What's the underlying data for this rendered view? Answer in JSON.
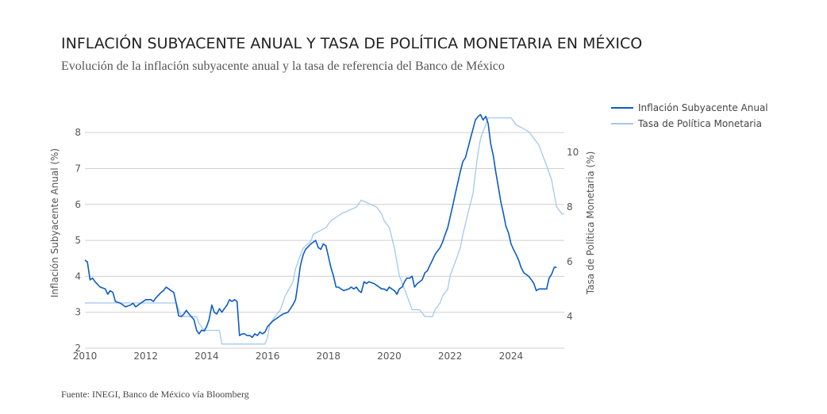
{
  "title": "INFLACIÓN SUBYACENTE ANUAL Y TASA DE POLÍTICA MONETARIA EN MÉXICO",
  "subtitle": "Evolución de la inflación subyacente anual y la tasa de referencia del Banco de México",
  "source": "Fuente: INEGI, Banco de México vía Bloomberg",
  "chart_data": {
    "type": "line",
    "x_range": [
      2010,
      2025.75
    ],
    "x_ticks": [
      "2010",
      "2012",
      "2014",
      "2016",
      "2018",
      "2020",
      "2022",
      "2024"
    ],
    "y_left": {
      "label": "Inflación Subyacente Anual (%)",
      "range": [
        2,
        8.6
      ],
      "ticks": [
        "2",
        "3",
        "4",
        "5",
        "6",
        "7",
        "8"
      ]
    },
    "y_right": {
      "label": "Tasa de Política Monetaria (%)",
      "range": [
        2.85,
        11.5
      ],
      "ticks": [
        "4",
        "6",
        "8",
        "10"
      ]
    },
    "grid": true,
    "legend_position": "top-right",
    "series": [
      {
        "name": "Inflación Subyacente Anual",
        "axis": "left",
        "color": "#0b5cc7",
        "points": [
          [
            2010.0,
            4.45
          ],
          [
            2010.08,
            4.4
          ],
          [
            2010.17,
            3.9
          ],
          [
            2010.25,
            3.95
          ],
          [
            2010.33,
            3.85
          ],
          [
            2010.5,
            3.7
          ],
          [
            2010.67,
            3.65
          ],
          [
            2010.75,
            3.5
          ],
          [
            2010.83,
            3.6
          ],
          [
            2010.92,
            3.55
          ],
          [
            2011.0,
            3.3
          ],
          [
            2011.17,
            3.25
          ],
          [
            2011.33,
            3.15
          ],
          [
            2011.5,
            3.2
          ],
          [
            2011.58,
            3.25
          ],
          [
            2011.67,
            3.15
          ],
          [
            2011.83,
            3.25
          ],
          [
            2012.0,
            3.35
          ],
          [
            2012.17,
            3.35
          ],
          [
            2012.25,
            3.3
          ],
          [
            2012.33,
            3.4
          ],
          [
            2012.5,
            3.55
          ],
          [
            2012.58,
            3.6
          ],
          [
            2012.67,
            3.7
          ],
          [
            2012.75,
            3.65
          ],
          [
            2012.92,
            3.55
          ],
          [
            2013.0,
            3.25
          ],
          [
            2013.08,
            2.9
          ],
          [
            2013.17,
            2.88
          ],
          [
            2013.25,
            2.95
          ],
          [
            2013.33,
            3.05
          ],
          [
            2013.42,
            2.95
          ],
          [
            2013.58,
            2.8
          ],
          [
            2013.67,
            2.5
          ],
          [
            2013.75,
            2.4
          ],
          [
            2013.83,
            2.5
          ],
          [
            2013.92,
            2.48
          ],
          [
            2014.0,
            2.6
          ],
          [
            2014.08,
            2.8
          ],
          [
            2014.17,
            3.2
          ],
          [
            2014.25,
            3.0
          ],
          [
            2014.33,
            2.95
          ],
          [
            2014.42,
            3.1
          ],
          [
            2014.5,
            3.0
          ],
          [
            2014.58,
            3.1
          ],
          [
            2014.67,
            3.2
          ],
          [
            2014.75,
            3.35
          ],
          [
            2014.83,
            3.3
          ],
          [
            2014.92,
            3.35
          ],
          [
            2015.0,
            3.3
          ],
          [
            2015.08,
            2.35
          ],
          [
            2015.17,
            2.4
          ],
          [
            2015.25,
            2.4
          ],
          [
            2015.33,
            2.35
          ],
          [
            2015.42,
            2.35
          ],
          [
            2015.5,
            2.3
          ],
          [
            2015.58,
            2.4
          ],
          [
            2015.67,
            2.35
          ],
          [
            2015.75,
            2.45
          ],
          [
            2015.83,
            2.4
          ],
          [
            2015.92,
            2.45
          ],
          [
            2016.0,
            2.6
          ],
          [
            2016.17,
            2.75
          ],
          [
            2016.33,
            2.85
          ],
          [
            2016.5,
            2.95
          ],
          [
            2016.67,
            3.0
          ],
          [
            2016.75,
            3.1
          ],
          [
            2016.83,
            3.2
          ],
          [
            2016.92,
            3.35
          ],
          [
            2017.0,
            3.8
          ],
          [
            2017.08,
            4.3
          ],
          [
            2017.17,
            4.6
          ],
          [
            2017.25,
            4.75
          ],
          [
            2017.42,
            4.9
          ],
          [
            2017.58,
            5.0
          ],
          [
            2017.67,
            4.8
          ],
          [
            2017.75,
            4.75
          ],
          [
            2017.83,
            4.9
          ],
          [
            2017.92,
            4.85
          ],
          [
            2018.0,
            4.55
          ],
          [
            2018.08,
            4.25
          ],
          [
            2018.17,
            4.0
          ],
          [
            2018.25,
            3.7
          ],
          [
            2018.33,
            3.7
          ],
          [
            2018.5,
            3.6
          ],
          [
            2018.67,
            3.65
          ],
          [
            2018.75,
            3.7
          ],
          [
            2018.83,
            3.65
          ],
          [
            2018.92,
            3.7
          ],
          [
            2019.0,
            3.6
          ],
          [
            2019.08,
            3.55
          ],
          [
            2019.17,
            3.85
          ],
          [
            2019.25,
            3.8
          ],
          [
            2019.33,
            3.85
          ],
          [
            2019.5,
            3.8
          ],
          [
            2019.58,
            3.75
          ],
          [
            2019.67,
            3.7
          ],
          [
            2019.75,
            3.65
          ],
          [
            2019.83,
            3.65
          ],
          [
            2019.92,
            3.6
          ],
          [
            2020.0,
            3.7
          ],
          [
            2020.08,
            3.65
          ],
          [
            2020.17,
            3.6
          ],
          [
            2020.25,
            3.5
          ],
          [
            2020.33,
            3.65
          ],
          [
            2020.42,
            3.7
          ],
          [
            2020.5,
            3.85
          ],
          [
            2020.58,
            3.95
          ],
          [
            2020.67,
            3.95
          ],
          [
            2020.75,
            4.0
          ],
          [
            2020.83,
            3.7
          ],
          [
            2020.92,
            3.8
          ],
          [
            2021.0,
            3.85
          ],
          [
            2021.08,
            3.9
          ],
          [
            2021.17,
            4.1
          ],
          [
            2021.25,
            4.15
          ],
          [
            2021.33,
            4.3
          ],
          [
            2021.42,
            4.45
          ],
          [
            2021.5,
            4.6
          ],
          [
            2021.58,
            4.7
          ],
          [
            2021.67,
            4.8
          ],
          [
            2021.75,
            4.95
          ],
          [
            2021.83,
            5.15
          ],
          [
            2021.92,
            5.35
          ],
          [
            2022.0,
            5.65
          ],
          [
            2022.08,
            5.95
          ],
          [
            2022.17,
            6.3
          ],
          [
            2022.25,
            6.6
          ],
          [
            2022.33,
            6.9
          ],
          [
            2022.42,
            7.2
          ],
          [
            2022.5,
            7.3
          ],
          [
            2022.58,
            7.55
          ],
          [
            2022.67,
            7.85
          ],
          [
            2022.75,
            8.1
          ],
          [
            2022.83,
            8.35
          ],
          [
            2022.92,
            8.45
          ],
          [
            2023.0,
            8.5
          ],
          [
            2023.08,
            8.35
          ],
          [
            2023.17,
            8.45
          ],
          [
            2023.25,
            8.25
          ],
          [
            2023.33,
            7.7
          ],
          [
            2023.42,
            7.35
          ],
          [
            2023.5,
            6.9
          ],
          [
            2023.58,
            6.5
          ],
          [
            2023.67,
            6.05
          ],
          [
            2023.75,
            5.75
          ],
          [
            2023.83,
            5.4
          ],
          [
            2023.92,
            5.2
          ],
          [
            2024.0,
            4.9
          ],
          [
            2024.08,
            4.75
          ],
          [
            2024.17,
            4.6
          ],
          [
            2024.25,
            4.45
          ],
          [
            2024.33,
            4.25
          ],
          [
            2024.42,
            4.1
          ],
          [
            2024.5,
            4.05
          ],
          [
            2024.58,
            4.0
          ],
          [
            2024.67,
            3.9
          ],
          [
            2024.75,
            3.8
          ],
          [
            2024.83,
            3.6
          ],
          [
            2024.92,
            3.65
          ],
          [
            2025.0,
            3.65
          ],
          [
            2025.08,
            3.65
          ],
          [
            2025.17,
            3.65
          ],
          [
            2025.25,
            3.95
          ],
          [
            2025.33,
            4.05
          ],
          [
            2025.42,
            4.25
          ],
          [
            2025.5,
            4.25
          ]
        ]
      },
      {
        "name": "Tasa de Política Monetaria",
        "axis": "right",
        "color": "#a3c8f0",
        "points": [
          [
            2010.0,
            4.5
          ],
          [
            2013.0,
            4.5
          ],
          [
            2013.17,
            4.0
          ],
          [
            2013.67,
            4.0
          ],
          [
            2013.75,
            3.75
          ],
          [
            2013.92,
            3.5
          ],
          [
            2014.42,
            3.5
          ],
          [
            2014.5,
            3.0
          ],
          [
            2015.92,
            3.0
          ],
          [
            2016.0,
            3.25
          ],
          [
            2016.08,
            3.75
          ],
          [
            2016.42,
            4.25
          ],
          [
            2016.58,
            4.75
          ],
          [
            2016.83,
            5.25
          ],
          [
            2016.92,
            5.75
          ],
          [
            2017.08,
            6.25
          ],
          [
            2017.17,
            6.5
          ],
          [
            2017.42,
            6.75
          ],
          [
            2017.5,
            7.0
          ],
          [
            2017.92,
            7.25
          ],
          [
            2018.08,
            7.5
          ],
          [
            2018.42,
            7.75
          ],
          [
            2018.92,
            8.0
          ],
          [
            2019.08,
            8.25
          ],
          [
            2019.58,
            8.0
          ],
          [
            2019.75,
            7.75
          ],
          [
            2019.83,
            7.5
          ],
          [
            2020.0,
            7.25
          ],
          [
            2020.17,
            6.5
          ],
          [
            2020.33,
            5.5
          ],
          [
            2020.5,
            5.0
          ],
          [
            2020.67,
            4.5
          ],
          [
            2020.75,
            4.25
          ],
          [
            2021.0,
            4.25
          ],
          [
            2021.17,
            4.0
          ],
          [
            2021.42,
            4.0
          ],
          [
            2021.5,
            4.25
          ],
          [
            2021.67,
            4.5
          ],
          [
            2021.75,
            4.75
          ],
          [
            2021.92,
            5.0
          ],
          [
            2022.0,
            5.5
          ],
          [
            2022.17,
            6.0
          ],
          [
            2022.33,
            6.5
          ],
          [
            2022.42,
            7.0
          ],
          [
            2022.58,
            7.75
          ],
          [
            2022.75,
            8.5
          ],
          [
            2022.83,
            9.25
          ],
          [
            2022.92,
            10.0
          ],
          [
            2023.0,
            10.5
          ],
          [
            2023.08,
            10.75
          ],
          [
            2023.17,
            11.0
          ],
          [
            2023.25,
            11.25
          ],
          [
            2024.0,
            11.25
          ],
          [
            2024.17,
            11.0
          ],
          [
            2024.58,
            10.75
          ],
          [
            2024.75,
            10.5
          ],
          [
            2024.92,
            10.25
          ],
          [
            2025.0,
            10.0
          ],
          [
            2025.17,
            9.5
          ],
          [
            2025.33,
            9.0
          ],
          [
            2025.5,
            8.0
          ],
          [
            2025.67,
            7.75
          ],
          [
            2025.75,
            7.75
          ]
        ]
      }
    ]
  }
}
